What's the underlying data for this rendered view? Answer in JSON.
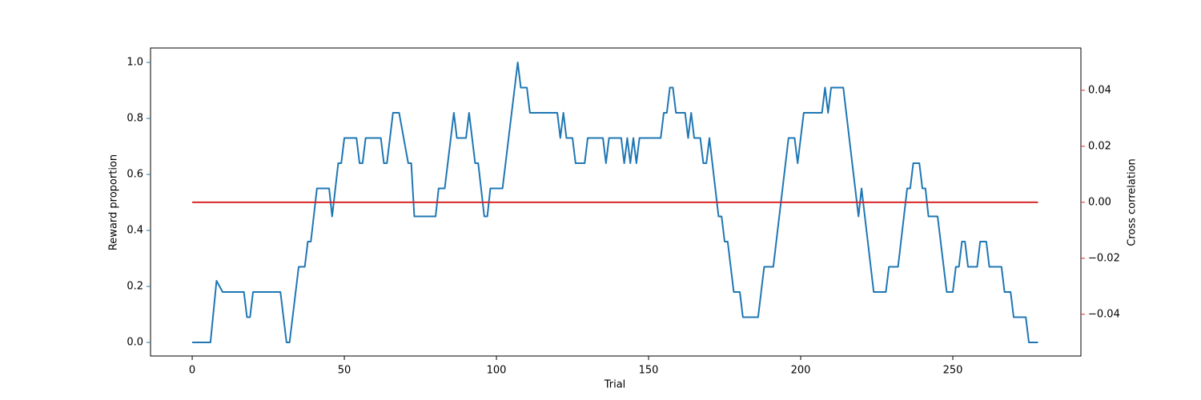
{
  "chart_data": {
    "type": "line",
    "xlabel": "Trial",
    "ylabel": "Reward proportion",
    "y2label": "Cross correlation",
    "xlim": [
      -13.7,
      292.1
    ],
    "xticks": [
      0,
      50,
      100,
      150,
      200,
      250
    ],
    "ylim": [
      -0.0486,
      1.0514
    ],
    "yticks": [
      {
        "value": 0,
        "label": "0.0"
      },
      0.2,
      0.4,
      0.6,
      0.8,
      {
        "value": 1,
        "label": "1.0"
      }
    ],
    "y2lim": [
      -0.0549,
      0.0551
    ],
    "y2ticks": [
      {
        "value": -0.04,
        "label": "−0.04"
      },
      {
        "value": -0.02,
        "label": "−0.02"
      },
      {
        "value": 0,
        "label": "0.00"
      },
      {
        "value": 0.02,
        "label": "0.02"
      },
      {
        "value": 0.04,
        "label": "0.04"
      }
    ],
    "series": [
      {
        "color": "#1f77b4",
        "x": [
          0,
          6,
          8,
          10,
          17,
          18,
          19,
          20,
          29,
          31,
          32,
          35,
          37,
          38,
          39,
          41,
          45,
          46,
          48,
          49,
          50,
          54,
          55,
          56,
          57,
          62,
          63,
          64,
          66,
          68,
          71,
          72,
          73,
          80,
          81,
          83,
          86,
          87,
          90,
          91,
          93,
          94,
          96,
          97,
          98,
          102,
          107,
          108,
          110,
          111,
          120,
          121,
          122,
          123,
          125,
          126,
          129,
          130,
          135,
          136,
          137,
          141,
          142,
          143,
          144,
          145,
          146,
          147,
          154,
          155,
          156,
          157,
          158,
          159,
          162,
          163,
          164,
          165,
          167,
          168,
          169,
          170,
          173,
          174,
          175,
          176,
          178,
          180,
          181,
          186,
          188,
          191,
          196,
          198,
          199,
          201,
          207,
          208,
          209,
          210,
          214,
          219,
          220,
          224,
          228,
          229,
          232,
          235,
          236,
          237,
          239,
          240,
          241,
          242,
          245,
          248,
          250,
          251,
          252,
          253,
          254,
          255,
          258,
          259,
          261,
          262,
          266,
          267,
          269,
          270,
          274,
          275,
          278
        ],
        "values": [
          0,
          0,
          0.22,
          0.18,
          0.18,
          0.09,
          0.09,
          0.18,
          0.18,
          0,
          0,
          0.27,
          0.27,
          0.36,
          0.36,
          0.55,
          0.55,
          0.45,
          0.64,
          0.64,
          0.73,
          0.73,
          0.64,
          0.64,
          0.73,
          0.73,
          0.64,
          0.64,
          0.82,
          0.82,
          0.64,
          0.64,
          0.45,
          0.45,
          0.55,
          0.55,
          0.82,
          0.73,
          0.73,
          0.82,
          0.64,
          0.64,
          0.45,
          0.45,
          0.55,
          0.55,
          1,
          0.91,
          0.91,
          0.82,
          0.82,
          0.73,
          0.82,
          0.73,
          0.73,
          0.64,
          0.64,
          0.73,
          0.73,
          0.64,
          0.73,
          0.73,
          0.64,
          0.73,
          0.64,
          0.73,
          0.64,
          0.73,
          0.73,
          0.82,
          0.82,
          0.91,
          0.91,
          0.82,
          0.82,
          0.73,
          0.82,
          0.73,
          0.73,
          0.64,
          0.64,
          0.73,
          0.45,
          0.45,
          0.36,
          0.36,
          0.18,
          0.18,
          0.09,
          0.09,
          0.27,
          0.27,
          0.73,
          0.73,
          0.64,
          0.82,
          0.82,
          0.91,
          0.82,
          0.91,
          0.91,
          0.45,
          0.55,
          0.18,
          0.18,
          0.27,
          0.27,
          0.55,
          0.55,
          0.64,
          0.64,
          0.55,
          0.55,
          0.45,
          0.45,
          0.18,
          0.18,
          0.27,
          0.27,
          0.36,
          0.36,
          0.27,
          0.27,
          0.36,
          0.36,
          0.27,
          0.27,
          0.18,
          0.18,
          0.09,
          0.09,
          0,
          0
        ]
      },
      {
        "color": "#d62728",
        "axis": "y2",
        "x": [
          0,
          278
        ],
        "values": [
          0,
          0
        ]
      }
    ]
  }
}
